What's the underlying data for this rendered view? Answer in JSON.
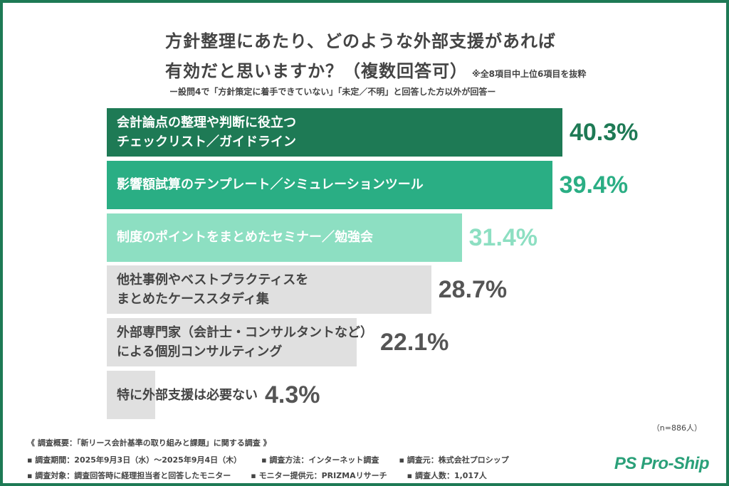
{
  "chart_data": {
    "type": "bar",
    "orientation": "horizontal",
    "title": "方針整理にあたり、どのような外部支援があれば有効だと思いますか？（複数回答可）",
    "title_lines": [
      "方針整理にあたり、どのような外部支援があれば",
      "有効だと思いますか？（複数回答可）"
    ],
    "note": "※全8項目中上位6項目を抜粋",
    "subtitle": "ー設問4で「方針策定に着手できていない」「未定／不明」と回答した方以外が回答ー",
    "unit": "%",
    "xlim": [
      0,
      100
    ],
    "categories": [
      [
        "会計論点の整理や判断に役立つ",
        "チェックリスト／ガイドライン"
      ],
      [
        "影響額試算のテンプレート／シミュレーションツール"
      ],
      [
        "制度のポイントをまとめたセミナー／勉強会"
      ],
      [
        "他社事例やベストプラクティスを",
        "まとめたケーススタディ集"
      ],
      [
        "外部専門家（会計士・コンサルタントなど）",
        "による個別コンサルティング"
      ],
      [
        "特に外部支援は必要ない"
      ]
    ],
    "values": [
      40.3,
      39.4,
      31.4,
      28.7,
      22.1,
      4.3
    ],
    "value_labels": [
      "40.3%",
      "39.4%",
      "31.4%",
      "28.7%",
      "22.1%",
      "4.3%"
    ],
    "bar_colors": [
      "#1e7a55",
      "#2aae84",
      "#8ddfc2",
      "#e0e0e0",
      "#e0e0e0",
      "#e0e0e0"
    ],
    "label_colors": [
      "#ffffff",
      "#ffffff",
      "#ffffff",
      "#444444",
      "#444444",
      "#444444"
    ],
    "value_colors": [
      "#1e7a55",
      "#2aae84",
      "#8ddfc2",
      "#555555",
      "#555555",
      "#555555"
    ],
    "sample": "（n=886人）"
  },
  "footer": {
    "overview": "《 調査概要：「新リース会計基準の取り組みと課題」に関する調査 》",
    "period": "▪ 調査期間：2025年9月3日（水）～2025年9月4日（木）",
    "method": "▪ 調査方法：インターネット調査",
    "source": "▪ 調査元：株式会社プロシップ",
    "target": "▪ 調査対象：調査回答時に経理担当者と回答したモニター",
    "provider": "▪ モニター提供元：PRIZMAリサーチ",
    "count": "▪ 調査人数：1,017人"
  },
  "logo": "PS Pro-Ship",
  "frame_color": "#1e7a55"
}
